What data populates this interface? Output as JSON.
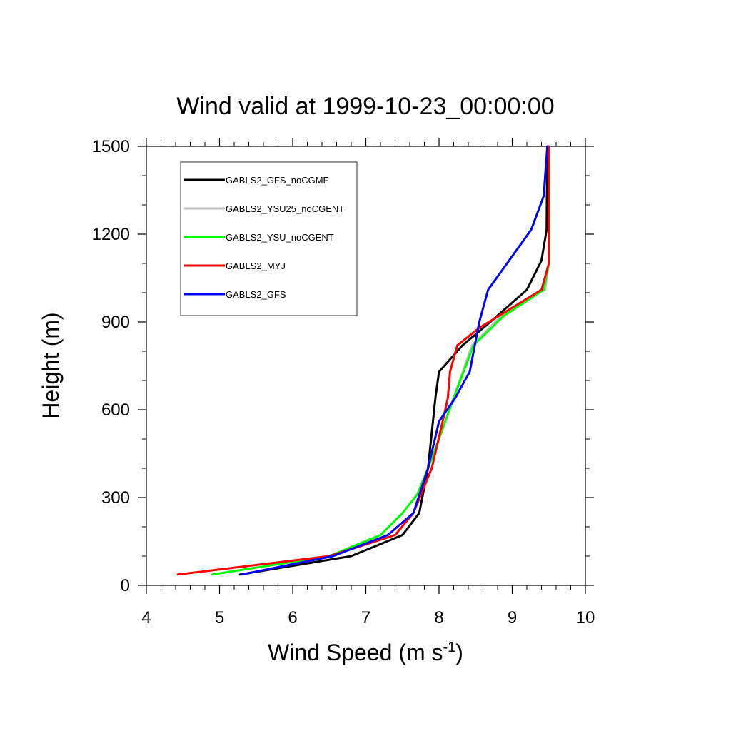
{
  "chart_data": {
    "type": "line",
    "title": "Wind valid at 1999-10-23_00:00:00",
    "xlabel": "Wind Speed (m s",
    "xlabel_sup": "-1",
    "xlabel_end": ")",
    "ylabel": "Height (m)",
    "xlim": [
      4,
      10
    ],
    "ylim": [
      0,
      1500
    ],
    "xticks": [
      4,
      5,
      6,
      7,
      8,
      9,
      10
    ],
    "yticks": [
      0,
      300,
      600,
      900,
      1200,
      1500
    ],
    "xticks_labels": [
      "4",
      "5",
      "6",
      "7",
      "8",
      "9",
      "10"
    ],
    "yticks_labels": [
      "0",
      "300",
      "600",
      "900",
      "1200",
      "1500"
    ],
    "x_minor_step": 0.2,
    "y_minor_step": 100,
    "grid": false,
    "legend_position": "top-left",
    "series": [
      {
        "name": "GABLS2_GFS_noCGMF",
        "color": "#000000",
        "points": [
          [
            5.28,
            37
          ],
          [
            6.8,
            100
          ],
          [
            7.5,
            172
          ],
          [
            7.73,
            247
          ],
          [
            7.85,
            400
          ],
          [
            7.95,
            640
          ],
          [
            8.0,
            730
          ],
          [
            8.32,
            820
          ],
          [
            8.7,
            900
          ],
          [
            9.2,
            1010
          ],
          [
            9.4,
            1110
          ],
          [
            9.47,
            1215
          ],
          [
            9.48,
            1500
          ]
        ]
      },
      {
        "name": "GABLS2_YSU25_noCGENT",
        "color": "#bebebe",
        "points": [
          [
            4.9,
            37
          ],
          [
            6.5,
            100
          ],
          [
            7.2,
            172
          ],
          [
            7.5,
            247
          ],
          [
            7.7,
            310
          ],
          [
            7.85,
            400
          ],
          [
            8.0,
            500
          ],
          [
            8.2,
            640
          ],
          [
            8.45,
            820
          ],
          [
            8.85,
            920
          ],
          [
            9.2,
            980
          ],
          [
            9.45,
            1010
          ],
          [
            9.5,
            1100
          ],
          [
            9.5,
            1500
          ]
        ]
      },
      {
        "name": "GABLS2_YSU_noCGENT",
        "color": "#00ff00",
        "points": [
          [
            4.9,
            37
          ],
          [
            6.5,
            100
          ],
          [
            7.2,
            172
          ],
          [
            7.5,
            247
          ],
          [
            7.7,
            310
          ],
          [
            7.85,
            400
          ],
          [
            8.0,
            500
          ],
          [
            8.2,
            640
          ],
          [
            8.47,
            820
          ],
          [
            8.88,
            920
          ],
          [
            9.43,
            1010
          ],
          [
            9.5,
            1100
          ],
          [
            9.5,
            1500
          ]
        ]
      },
      {
        "name": "GABLS2_MYJ",
        "color": "#ff0000",
        "points": [
          [
            4.43,
            37
          ],
          [
            6.5,
            100
          ],
          [
            7.4,
            172
          ],
          [
            7.65,
            247
          ],
          [
            7.9,
            400
          ],
          [
            8.05,
            560
          ],
          [
            8.12,
            640
          ],
          [
            8.15,
            730
          ],
          [
            8.25,
            820
          ],
          [
            8.55,
            880
          ],
          [
            9.4,
            1010
          ],
          [
            9.5,
            1100
          ],
          [
            9.5,
            1500
          ]
        ]
      },
      {
        "name": "GABLS2_GFS",
        "color": "#0000ff",
        "points": [
          [
            5.3,
            37
          ],
          [
            6.55,
            100
          ],
          [
            7.3,
            172
          ],
          [
            7.65,
            247
          ],
          [
            7.85,
            400
          ],
          [
            8.0,
            560
          ],
          [
            8.22,
            640
          ],
          [
            8.42,
            730
          ],
          [
            8.55,
            900
          ],
          [
            8.67,
            1010
          ],
          [
            9.26,
            1215
          ],
          [
            9.43,
            1330
          ],
          [
            9.48,
            1500
          ]
        ]
      }
    ]
  }
}
